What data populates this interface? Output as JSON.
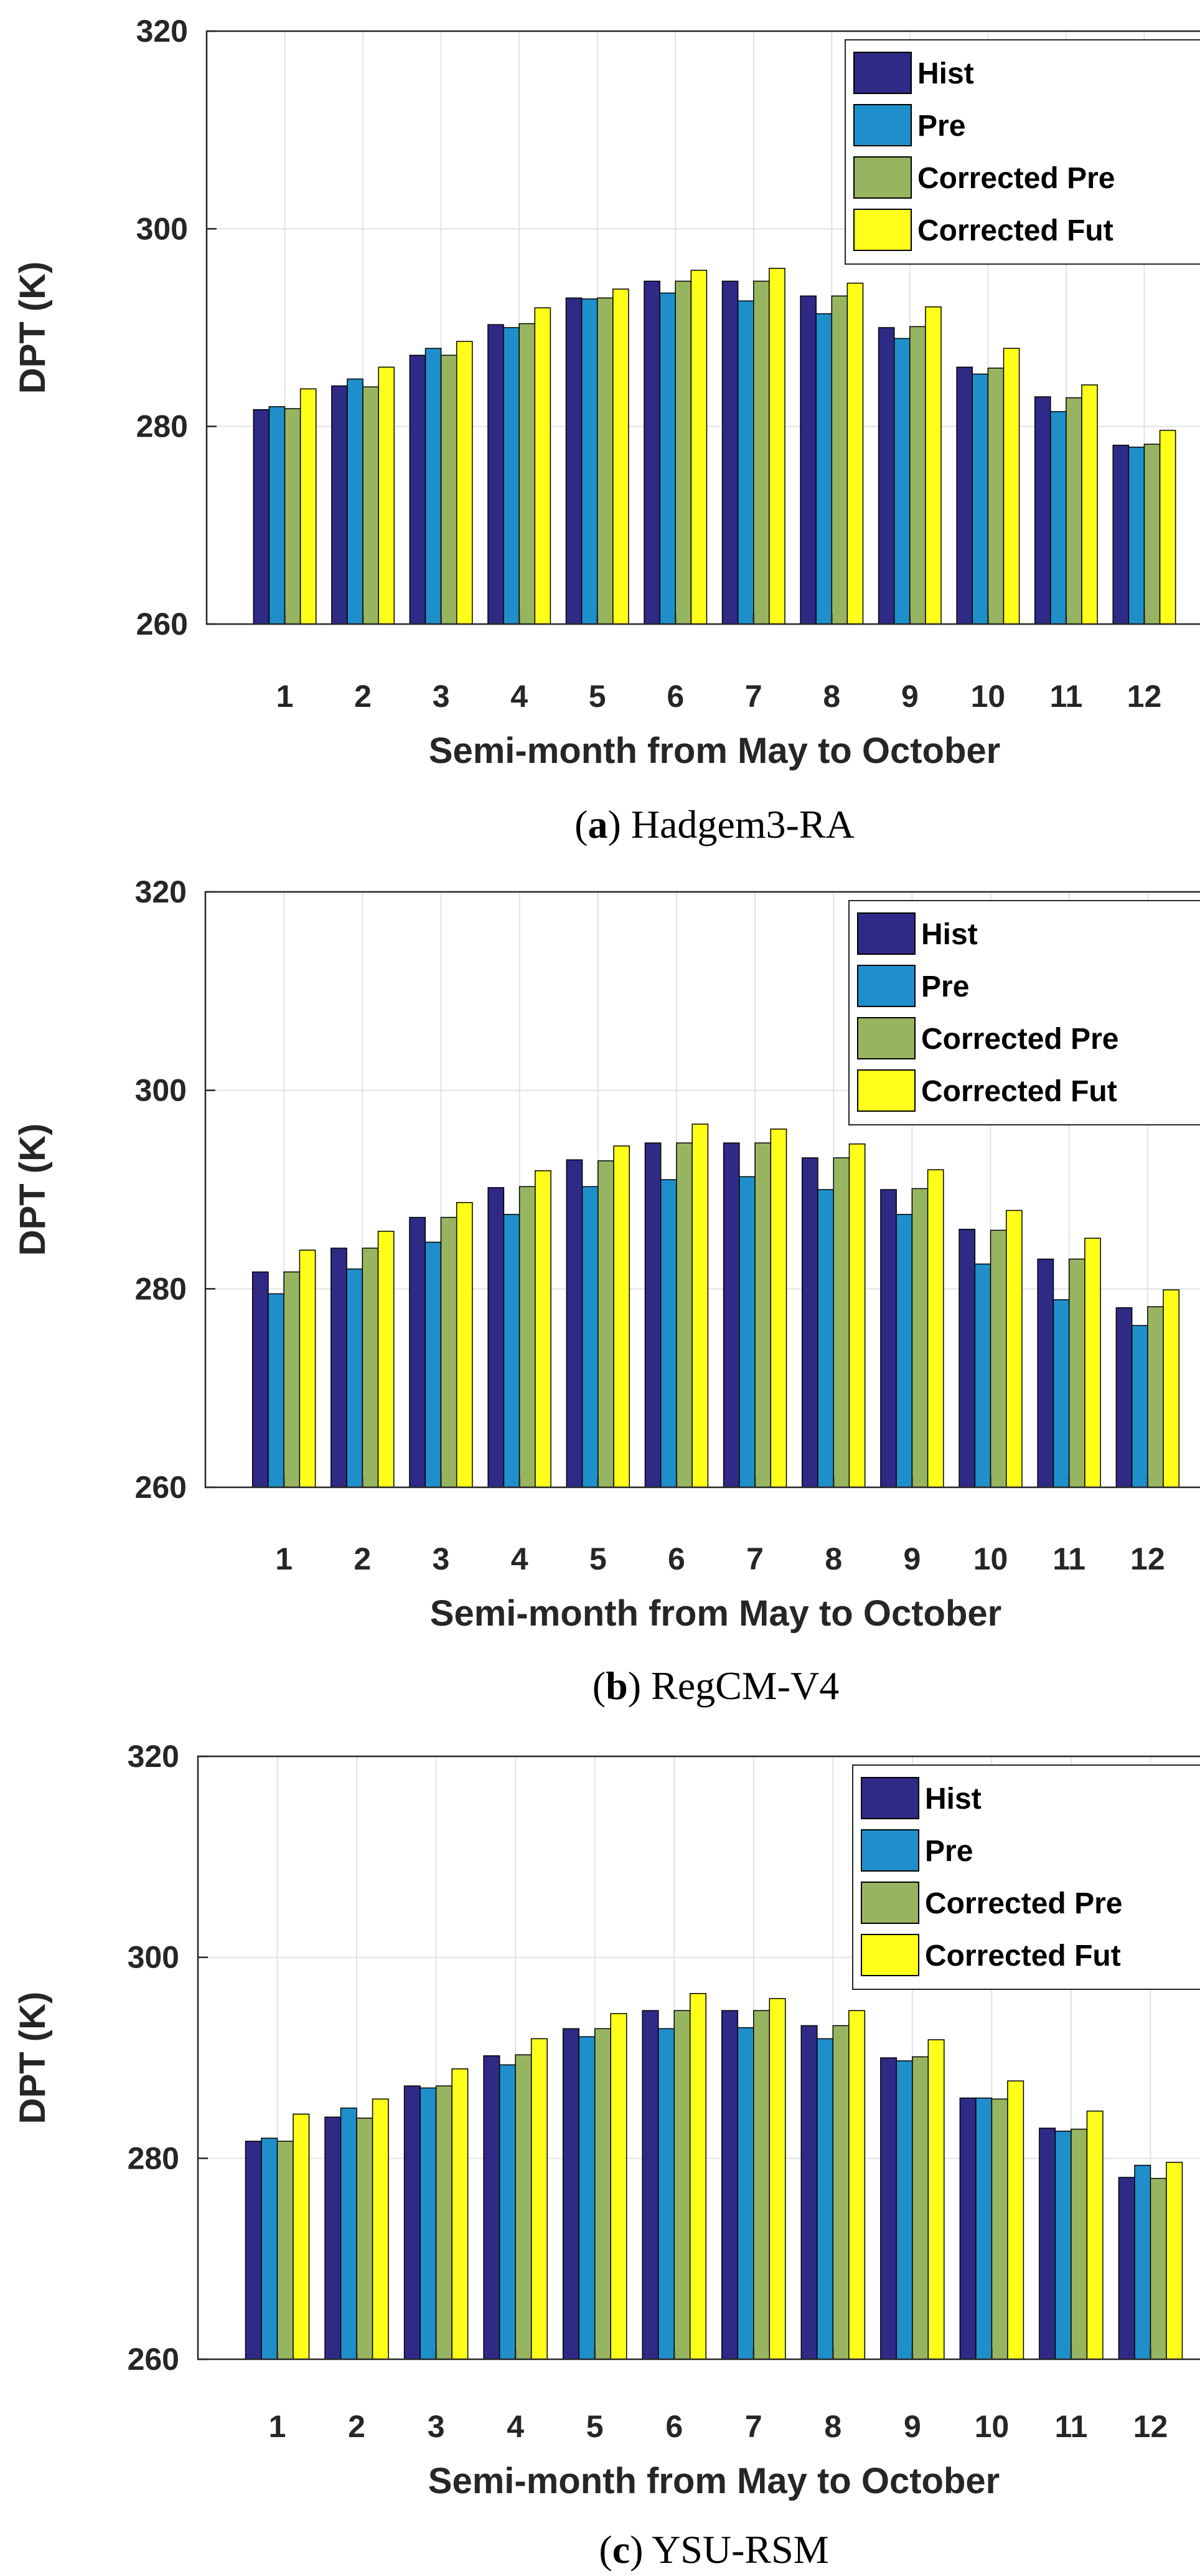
{
  "colors": {
    "hist": "#2e2a85",
    "pre": "#1f8fcc",
    "corrected_pre": "#97b560",
    "corrected_fut": "#ffff19",
    "grid": "#e2e2e2",
    "axis": "#262626"
  },
  "chart_data": [
    {
      "type": "bar",
      "caption_letter": "a",
      "caption_text": " Hadgem3-RA",
      "xlabel": "Semi-month from May to October",
      "ylabel": "DPT (K)",
      "ylim": [
        260,
        320
      ],
      "yticks": [
        260,
        280,
        300,
        320
      ],
      "grid": true,
      "legend_position": "top-right",
      "categories": [
        "1",
        "2",
        "3",
        "4",
        "5",
        "6",
        "7",
        "8",
        "9",
        "10",
        "11",
        "12"
      ],
      "series": [
        {
          "name": "Hist",
          "color_key": "hist",
          "values": [
            281.7,
            284.1,
            287.2,
            290.3,
            293.0,
            294.7,
            294.7,
            293.2,
            290.0,
            286.0,
            283.0,
            278.1
          ]
        },
        {
          "name": "Pre",
          "color_key": "pre",
          "values": [
            282.0,
            284.8,
            287.9,
            290.0,
            292.9,
            293.5,
            292.7,
            291.4,
            288.9,
            285.3,
            281.5,
            277.9
          ]
        },
        {
          "name": "Corrected Pre",
          "color_key": "corrected_pre",
          "values": [
            281.8,
            284.0,
            287.2,
            290.4,
            293.0,
            294.7,
            294.7,
            293.2,
            290.1,
            285.9,
            282.9,
            278.2
          ]
        },
        {
          "name": "Corrected Fut",
          "color_key": "corrected_fut",
          "values": [
            283.8,
            286.0,
            288.6,
            292.0,
            293.9,
            295.8,
            296.0,
            294.5,
            292.1,
            287.9,
            284.2,
            279.6
          ]
        }
      ]
    },
    {
      "type": "bar",
      "caption_letter": "b",
      "caption_text": " RegCM-V4",
      "xlabel": "Semi-month from May to October",
      "ylabel": "DPT (K)",
      "ylim": [
        260,
        320
      ],
      "yticks": [
        260,
        280,
        300,
        320
      ],
      "grid": true,
      "legend_position": "top-right",
      "categories": [
        "1",
        "2",
        "3",
        "4",
        "5",
        "6",
        "7",
        "8",
        "9",
        "10",
        "11",
        "12"
      ],
      "series": [
        {
          "name": "Hist",
          "color_key": "hist",
          "values": [
            281.7,
            284.1,
            287.2,
            290.2,
            293.0,
            294.7,
            294.7,
            293.2,
            290.0,
            286.0,
            283.0,
            278.1
          ]
        },
        {
          "name": "Pre",
          "color_key": "pre",
          "values": [
            279.5,
            282.0,
            284.7,
            287.5,
            290.3,
            291.0,
            291.3,
            290.0,
            287.5,
            282.5,
            278.9,
            276.3
          ]
        },
        {
          "name": "Corrected Pre",
          "color_key": "corrected_pre",
          "values": [
            281.7,
            284.1,
            287.2,
            290.3,
            292.9,
            294.7,
            294.7,
            293.2,
            290.1,
            285.9,
            283.0,
            278.2
          ]
        },
        {
          "name": "Corrected Fut",
          "color_key": "corrected_fut",
          "values": [
            283.9,
            285.8,
            288.7,
            291.9,
            294.4,
            296.6,
            296.1,
            294.6,
            292.0,
            287.9,
            285.1,
            279.9
          ]
        }
      ]
    },
    {
      "type": "bar",
      "caption_letter": "c",
      "caption_text": " YSU-RSM",
      "xlabel": "Semi-month from May to October",
      "ylabel": "DPT (K)",
      "ylim": [
        260,
        320
      ],
      "yticks": [
        260,
        280,
        300,
        320
      ],
      "grid": true,
      "legend_position": "top-right",
      "categories": [
        "1",
        "2",
        "3",
        "4",
        "5",
        "6",
        "7",
        "8",
        "9",
        "10",
        "11",
        "12"
      ],
      "series": [
        {
          "name": "Hist",
          "color_key": "hist",
          "values": [
            281.7,
            284.1,
            287.2,
            290.2,
            292.9,
            294.7,
            294.7,
            293.2,
            290.0,
            286.0,
            283.0,
            278.1
          ]
        },
        {
          "name": "Pre",
          "color_key": "pre",
          "values": [
            282.0,
            285.0,
            287.0,
            289.3,
            292.1,
            292.9,
            293.0,
            291.9,
            289.7,
            286.0,
            282.7,
            279.3
          ]
        },
        {
          "name": "Corrected Pre",
          "color_key": "corrected_pre",
          "values": [
            281.7,
            284.0,
            287.2,
            290.3,
            292.9,
            294.7,
            294.7,
            293.2,
            290.1,
            285.9,
            282.9,
            278.0
          ]
        },
        {
          "name": "Corrected Fut",
          "color_key": "corrected_fut",
          "values": [
            284.4,
            285.9,
            288.9,
            291.9,
            294.4,
            296.4,
            295.9,
            294.7,
            291.8,
            287.7,
            284.7,
            279.6
          ]
        }
      ]
    }
  ]
}
